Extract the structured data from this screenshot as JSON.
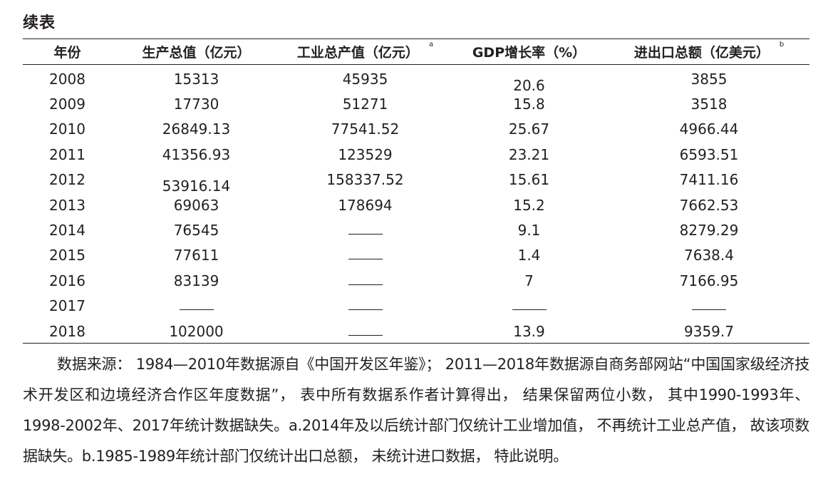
{
  "title": "续表",
  "headers": [
    {
      "label": "年份",
      "note": ""
    },
    {
      "label": "生产总值（亿元）",
      "note": ""
    },
    {
      "label": "工业总产值（亿元）",
      "note": "a"
    },
    {
      "label": "GDP增长率（%）",
      "note": ""
    },
    {
      "label": "进出口总额（亿美元）",
      "note": "b"
    }
  ],
  "rows": [
    [
      "2008",
      "15313",
      "45935",
      "20.6",
      "3855"
    ],
    [
      "2009",
      "17730",
      "51271",
      "15.8",
      "3518"
    ],
    [
      "2010",
      "26849.13",
      "77541.52",
      "25.67",
      "4966.44"
    ],
    [
      "2011",
      "41356.93",
      "123529",
      "23.21",
      "6593.51"
    ],
    [
      "2012",
      "53916.14",
      "158337.52",
      "15.61",
      "7411.16"
    ],
    [
      "2013",
      "69063",
      "178694",
      "15.2",
      "7662.53"
    ],
    [
      "2014",
      "76545",
      "——",
      "9.1",
      "8279.29"
    ],
    [
      "2015",
      "77611",
      "——",
      "1.4",
      "7638.4"
    ],
    [
      "2016",
      "83139",
      "——",
      "7",
      "7166.95"
    ],
    [
      "2017",
      "——",
      "——",
      "——",
      "——"
    ],
    [
      "2018",
      "102000",
      "——",
      "13.9",
      "9359.7"
    ]
  ],
  "note": "数据来源： 1984—2010年数据源自《中国开发区年鉴》； 2011—2018年数据源自商务部网站“中国国家级经济技术开发区和边境经济合作区年度数据”， 表中所有数据系作者计算得出， 结果保留两位小数， 其中1990-1993年、1998-2002年、2017年统计数据缺失。a.2014年及以后统计部门仅统计工业增加值， 不再统计工业总产值， 故该项数据缺失。b.1985-1989年统计部门仅统计出口总额， 未统计进口数据， 特此说明。"
}
